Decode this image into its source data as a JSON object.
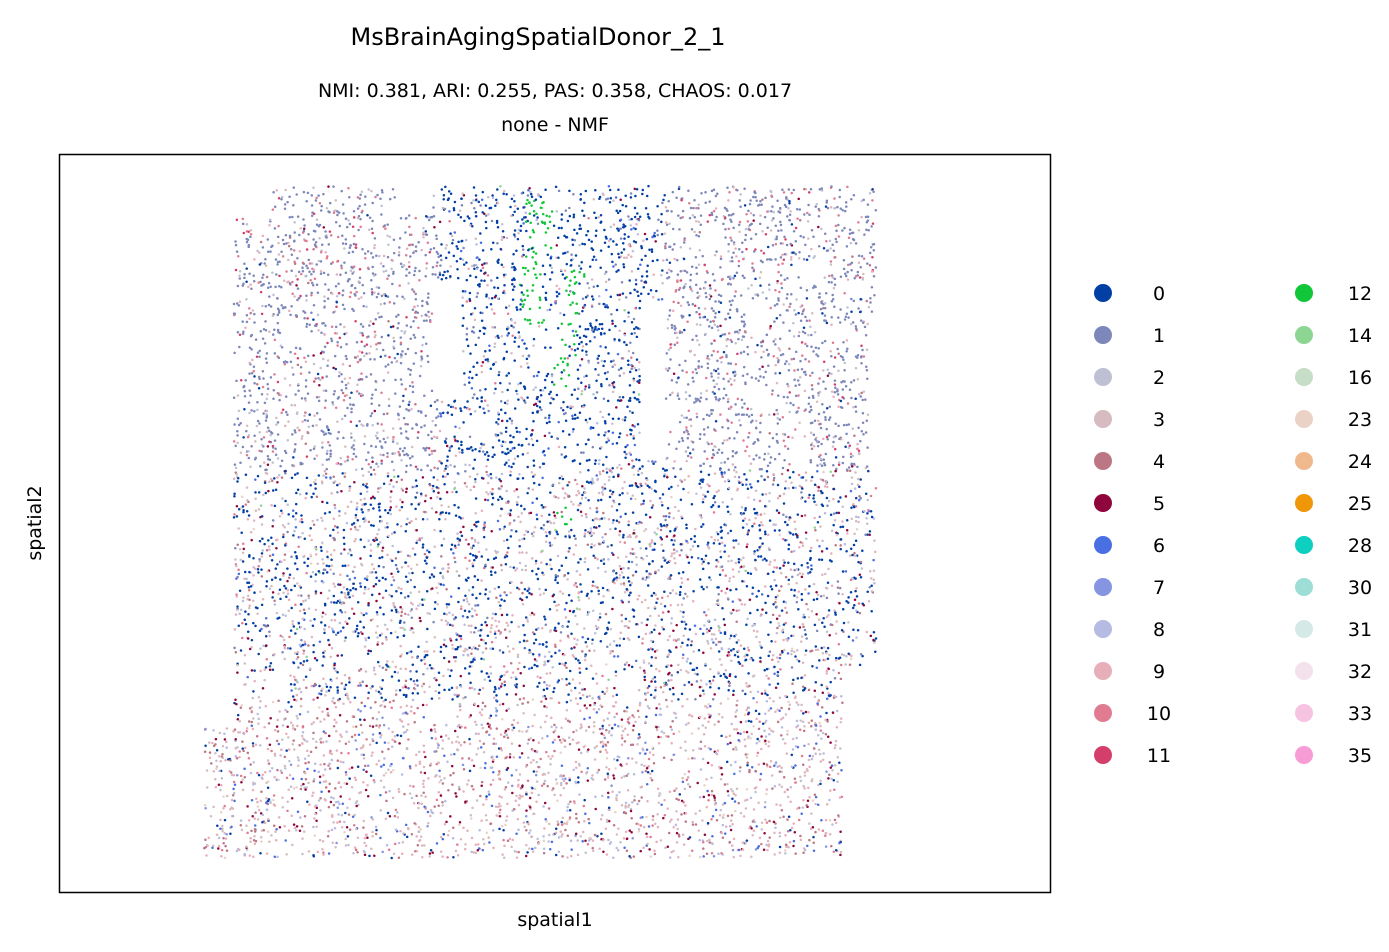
{
  "chart_data": {
    "type": "scatter",
    "title": "MsBrainAgingSpatialDonor_2_1",
    "subtitle_line1": "NMI: 0.381,  ARI: 0.255,  PAS: 0.358,  CHAOS: 0.017",
    "subtitle_line2": "none - NMF",
    "xlabel": "spatial1",
    "ylabel": "spatial2",
    "grid": false,
    "ticks": false,
    "legend_position": "right",
    "legend": [
      {
        "label": "0",
        "color": "#023fa5"
      },
      {
        "label": "1",
        "color": "#7d87b9"
      },
      {
        "label": "2",
        "color": "#bec1d4"
      },
      {
        "label": "3",
        "color": "#d6bcc0"
      },
      {
        "label": "4",
        "color": "#bb7784"
      },
      {
        "label": "5",
        "color": "#8e063b"
      },
      {
        "label": "6",
        "color": "#4a6fe3"
      },
      {
        "label": "7",
        "color": "#8595e1"
      },
      {
        "label": "8",
        "color": "#b5bbe3"
      },
      {
        "label": "9",
        "color": "#e6afb9"
      },
      {
        "label": "10",
        "color": "#e07b91"
      },
      {
        "label": "11",
        "color": "#d33f6a"
      },
      {
        "label": "12",
        "color": "#11c638"
      },
      {
        "label": "14",
        "color": "#8dd593"
      },
      {
        "label": "16",
        "color": "#c6dec7"
      },
      {
        "label": "23",
        "color": "#ead3c6"
      },
      {
        "label": "24",
        "color": "#f0b98d"
      },
      {
        "label": "25",
        "color": "#ef9708"
      },
      {
        "label": "28",
        "color": "#0fcfc0"
      },
      {
        "label": "30",
        "color": "#9cded6"
      },
      {
        "label": "31",
        "color": "#d5eae7"
      },
      {
        "label": "32",
        "color": "#f3e1eb"
      },
      {
        "label": "33",
        "color": "#f6c4e1"
      },
      {
        "label": "35",
        "color": "#f79cd4"
      }
    ]
  }
}
